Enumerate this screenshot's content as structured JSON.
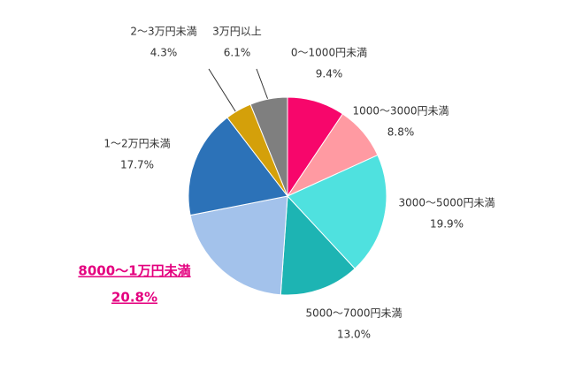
{
  "chart_data": {
    "type": "pie",
    "categories": [
      "0～1000円未満",
      "1000～3000円未満",
      "3000～5000円未満",
      "5000～7000円未満",
      "8000～1万円未満",
      "1～2万円未満",
      "2～3万円未満",
      "3万円以上"
    ],
    "values": [
      9.4,
      8.8,
      19.9,
      13.0,
      20.8,
      17.7,
      4.3,
      6.1
    ],
    "value_labels": [
      "9.4%",
      "8.8%",
      "19.9%",
      "13.0%",
      "20.8%",
      "17.7%",
      "4.3%",
      "6.1%"
    ],
    "colors": [
      "#f7066b",
      "#ff9aa2",
      "#4fe1df",
      "#1db4b3",
      "#a3c2eb",
      "#2c72b8",
      "#d4a00a",
      "#7f7f7f"
    ],
    "highlight_index": 4,
    "highlight_color": "#e4007f"
  }
}
